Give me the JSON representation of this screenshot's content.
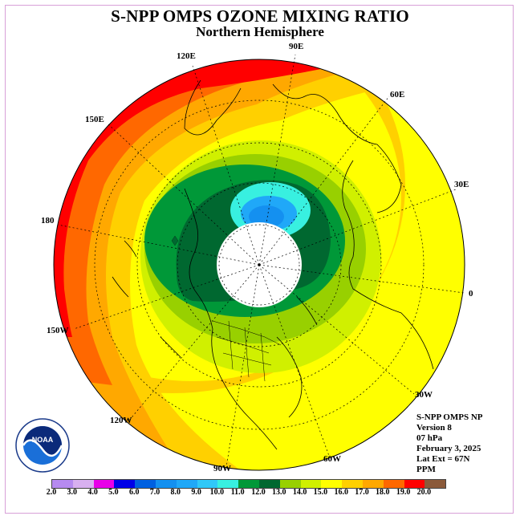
{
  "title": "S-NPP OMPS OZONE MIXING RATIO",
  "subtitle": "Northern Hemisphere",
  "longitude_labels": [
    "90E",
    "60E",
    "30E",
    "0",
    "30W",
    "60W",
    "90W",
    "120W",
    "150W",
    "180",
    "150E",
    "120E"
  ],
  "info": {
    "instrument": "S-NPP OMPS NP",
    "version": "Version 8",
    "level": "07 hPa",
    "date": "February 3, 2025",
    "lat_ext": "Lat Ext = 67N",
    "units": "PPM"
  },
  "logo": {
    "text": "NOAA",
    "ring_text": "NATIONAL OCEANIC AND ATMOSPHERIC ADMINISTRATION · U.S. DEPARTMENT OF COMMERCE"
  },
  "colorbar": {
    "ticks": [
      "2.0",
      "3.0",
      "4.0",
      "5.0",
      "6.0",
      "7.0",
      "8.0",
      "9.0",
      "10.0",
      "11.0",
      "12.0",
      "13.0",
      "14.0",
      "15.0",
      "16.0",
      "17.0",
      "18.0",
      "19.0",
      "20.0"
    ],
    "colors": [
      "#b68af0",
      "#d8b0f0",
      "#e800e8",
      "#0000e8",
      "#0060e0",
      "#1490f0",
      "#20a8f8",
      "#30c8f8",
      "#38f0e0",
      "#009838",
      "#006830",
      "#98d000",
      "#d0f000",
      "#ffff00",
      "#ffd000",
      "#ffa800",
      "#ff6800",
      "#ff0000",
      "#8b5a3a"
    ]
  },
  "map_field": {
    "projection": "north polar stereographic",
    "polar_night_mask": "white (no data)",
    "ozone_ppm_by_region": {
      "pole_offset_high": "12.0-13.0",
      "north_atlantic": "14.0-15.0",
      "north_pacific": "16.0-20.0",
      "low_latitudes": "15.0-16.0"
    }
  }
}
